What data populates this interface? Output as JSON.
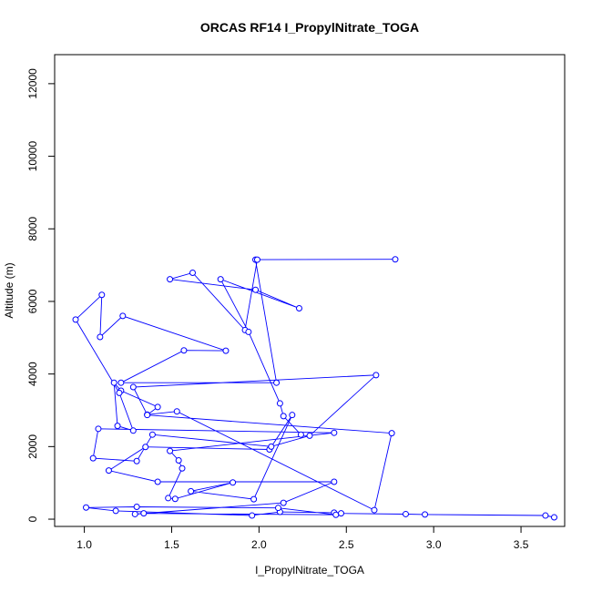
{
  "chart_data": {
    "type": "line",
    "title": "ORCAS RF14 I_PropylNitrate_TOGA",
    "xlabel": "I_PropylNitrate_TOGA",
    "ylabel": "Altitude (m)",
    "xlim": [
      0.83,
      3.75
    ],
    "ylim": [
      -200,
      12800
    ],
    "xticks": [
      1.0,
      1.5,
      2.0,
      2.5,
      3.0,
      3.5
    ],
    "xtick_labels": [
      "1.0",
      "1.5",
      "2.0",
      "2.5",
      "3.0",
      "3.5"
    ],
    "yticks": [
      0,
      2000,
      4000,
      6000,
      8000,
      10000,
      12000
    ],
    "ytick_labels": [
      "0",
      "2000",
      "4000",
      "6000",
      "8000",
      "10000",
      "12000"
    ],
    "color": "#0000ff",
    "marker": "open-circle",
    "series": [
      {
        "x": [
          3.69,
          3.64,
          2.95,
          2.84,
          2.47,
          2.43,
          2.12,
          1.96,
          1.18,
          1.01,
          1.3,
          2.11,
          2.44,
          1.34,
          1.29,
          2.14,
          2.43,
          1.42,
          1.14,
          1.35,
          2.06,
          2.19,
          1.97,
          1.61,
          1.85,
          1.52,
          1.48,
          1.56,
          1.54,
          1.49,
          2.43,
          1.08,
          1.05,
          1.3,
          1.39,
          2.07,
          2.29,
          2.67,
          1.28,
          1.36,
          1.53,
          2.66,
          2.76,
          1.36,
          1.42,
          1.21,
          1.17,
          1.19,
          1.28,
          1.2,
          0.95,
          1.1,
          1.09,
          1.22,
          1.81,
          1.57,
          1.21,
          2.1,
          1.98,
          2.78,
          1.99,
          1.92,
          1.62,
          1.49,
          1.98,
          2.23,
          1.78,
          1.94,
          2.12,
          2.14,
          2.24
        ],
        "y": [
          50,
          100,
          130,
          140,
          160,
          180,
          200,
          100,
          230,
          320,
          340,
          310,
          120,
          160,
          140,
          450,
          1030,
          1030,
          1340,
          1990,
          1920,
          2870,
          550,
          770,
          1010,
          560,
          580,
          1400,
          1620,
          1880,
          2380,
          2490,
          1680,
          1600,
          2330,
          2000,
          2300,
          3970,
          3640,
          2880,
          2970,
          250,
          2370,
          2870,
          3090,
          3540,
          3760,
          2570,
          2440,
          3480,
          5500,
          6180,
          5020,
          5600,
          4640,
          4650,
          3760,
          3760,
          7150,
          7160,
          7150,
          5210,
          6790,
          6610,
          6320,
          5810,
          6610,
          5160,
          3190,
          2840,
          2330
        ]
      }
    ]
  }
}
